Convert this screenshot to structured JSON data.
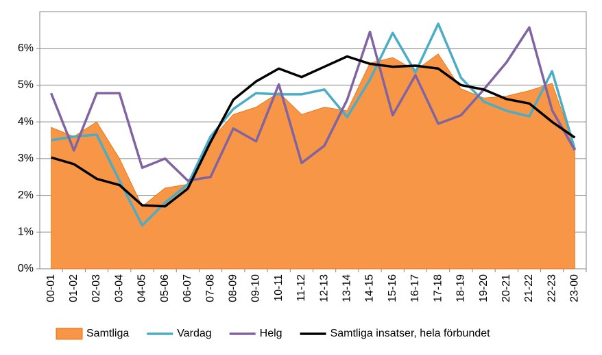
{
  "chart_data": {
    "type": "line",
    "categories": [
      "00-01",
      "01-02",
      "02-03",
      "03-04",
      "04-05",
      "05-06",
      "06-07",
      "07-08",
      "08-09",
      "09-10",
      "10-11",
      "11-12",
      "12-13",
      "13-14",
      "14-15",
      "15-16",
      "16-17",
      "17-18",
      "18-19",
      "19-20",
      "20-21",
      "21-22",
      "22-23",
      "23-00"
    ],
    "series": [
      {
        "name": "Samtliga",
        "type": "area",
        "color": "#F79646",
        "values": [
          3.85,
          3.6,
          4.0,
          3.0,
          1.7,
          2.2,
          2.3,
          3.5,
          4.2,
          4.4,
          4.8,
          4.2,
          4.4,
          4.3,
          5.6,
          5.75,
          5.4,
          5.85,
          4.9,
          4.65,
          4.7,
          4.85,
          5.05,
          3.3
        ]
      },
      {
        "name": "Vardag",
        "type": "line",
        "color": "#4BACC6",
        "values": [
          3.5,
          3.6,
          3.65,
          2.4,
          1.18,
          1.8,
          2.3,
          3.6,
          4.35,
          4.78,
          4.75,
          4.75,
          4.88,
          4.13,
          5.15,
          6.42,
          5.35,
          6.67,
          5.2,
          4.55,
          4.3,
          4.15,
          5.38,
          3.25
        ]
      },
      {
        "name": "Helg",
        "type": "line",
        "color": "#8064A2",
        "values": [
          4.78,
          3.22,
          4.78,
          4.78,
          2.75,
          3.0,
          2.4,
          2.5,
          3.82,
          3.47,
          5.02,
          2.88,
          3.35,
          4.6,
          6.45,
          4.18,
          5.27,
          3.95,
          4.18,
          4.88,
          5.62,
          6.57,
          4.32,
          3.23
        ]
      },
      {
        "name": "Samtliga insatser, hela förbundet",
        "type": "line",
        "color": "#000000",
        "values": [
          3.03,
          2.85,
          2.45,
          2.28,
          1.73,
          1.7,
          2.18,
          3.45,
          4.6,
          5.1,
          5.45,
          5.22,
          5.5,
          5.78,
          5.58,
          5.5,
          5.53,
          5.45,
          5.0,
          4.88,
          4.62,
          4.5,
          4.0,
          3.57
        ]
      }
    ],
    "ylim": [
      0,
      7
    ],
    "yticks": [
      {
        "value": 0,
        "label": "0%"
      },
      {
        "value": 1,
        "label": "1%"
      },
      {
        "value": 2,
        "label": "2%"
      },
      {
        "value": 3,
        "label": "3%"
      },
      {
        "value": 4,
        "label": "4%"
      },
      {
        "value": 5,
        "label": "5%"
      },
      {
        "value": 6,
        "label": "6%"
      }
    ],
    "grid": true,
    "legend": "bottom"
  }
}
